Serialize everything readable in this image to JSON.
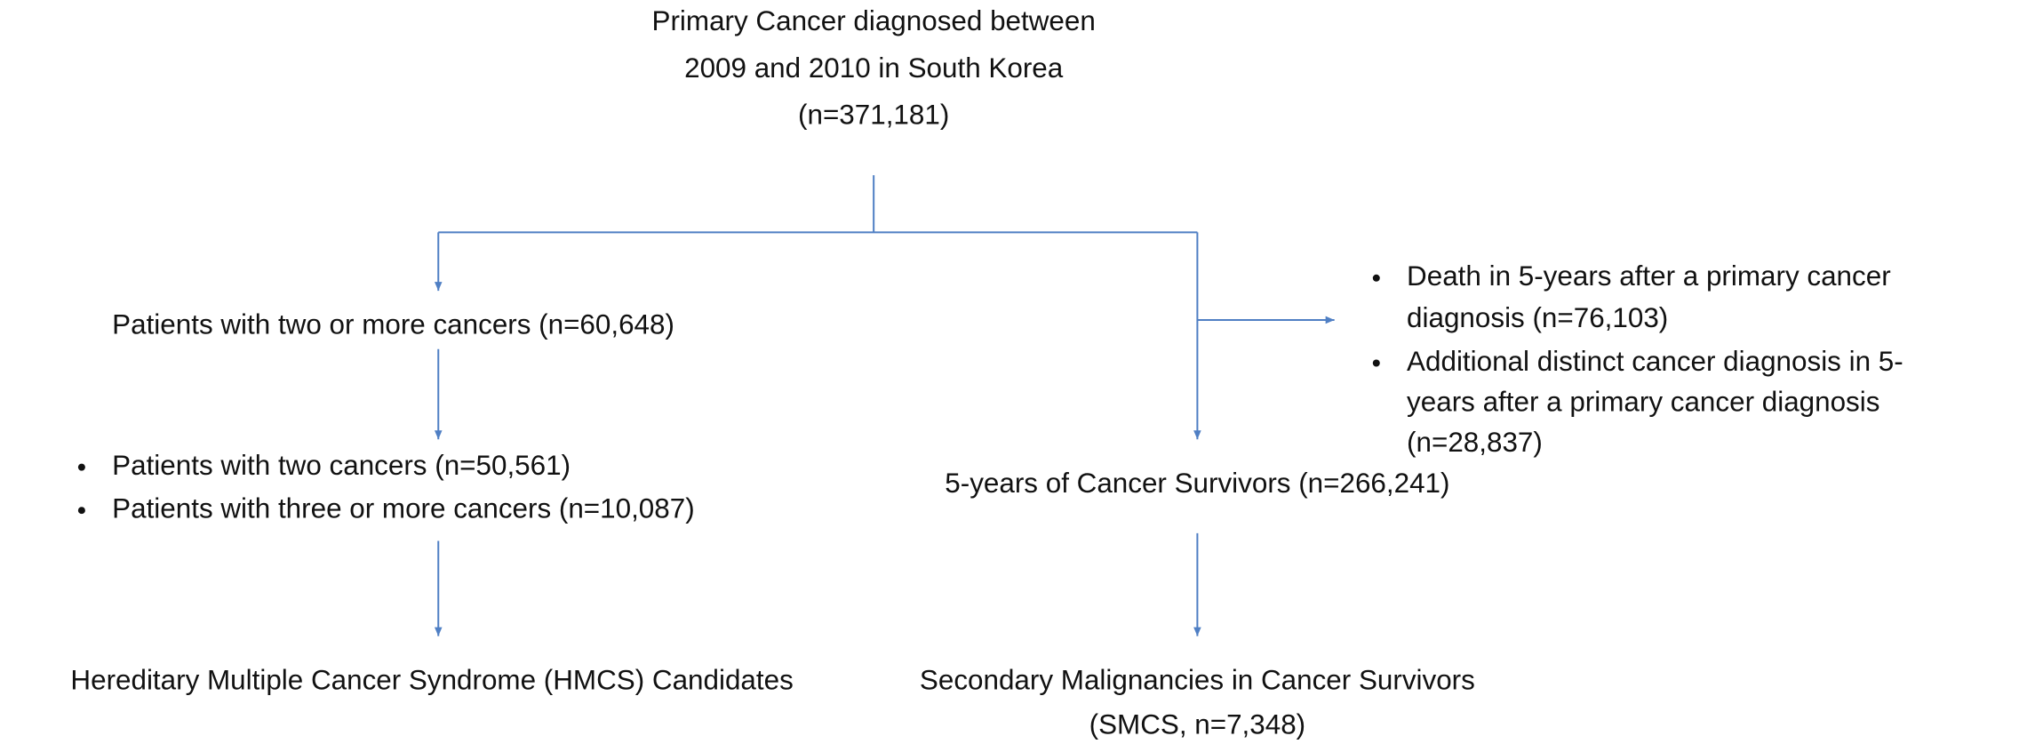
{
  "nodes": [
    {
      "id": "primary",
      "lines": [
        "Primary Cancer diagnosed between",
        "2009 and 2010 in South Korea",
        "(n=371,181)"
      ]
    },
    {
      "id": "multiple",
      "lines": [
        "Patients with two or more cancers (n=60,648)"
      ]
    },
    {
      "id": "multiple-split",
      "items": [
        [
          "Patients with two cancers (n=50,561)"
        ],
        [
          "Patients with three or more cancers (n=10,087)"
        ]
      ]
    },
    {
      "id": "hmcs",
      "lines": [
        "Hereditary Multiple Cancer Syndrome (HMCS) Candidates"
      ]
    },
    {
      "id": "excluded",
      "items": [
        [
          "Death in 5-years after a primary cancer",
          "diagnosis (n=76,103)"
        ],
        [
          "Additional distinct cancer diagnosis in 5-",
          "years after a primary cancer diagnosis",
          "(n=28,837)"
        ]
      ]
    },
    {
      "id": "survivors",
      "lines": [
        "5-years of Cancer Survivors (n=266,241)"
      ]
    },
    {
      "id": "smcs",
      "lines": [
        "Secondary Malignancies in Cancer Survivors",
        "(SMCS, n=7,348)"
      ]
    }
  ]
}
